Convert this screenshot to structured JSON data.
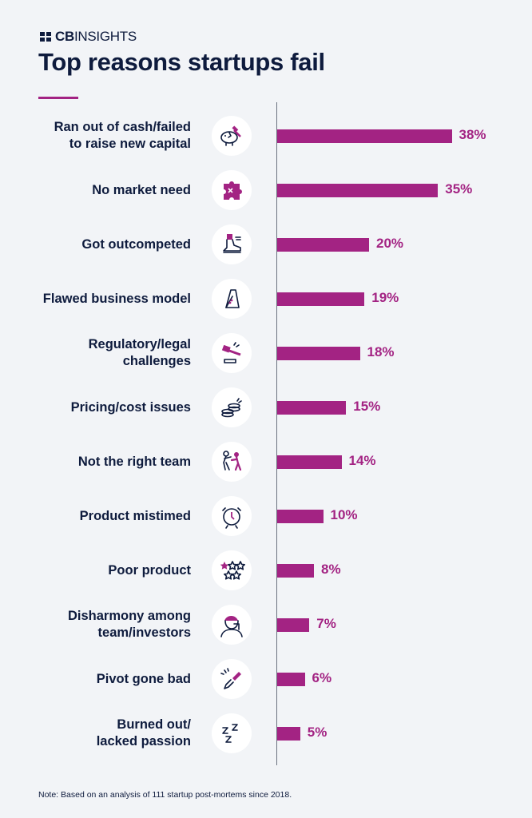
{
  "brand": {
    "bold": "CB",
    "rest": "INSIGHTS"
  },
  "note": "Note: Based on an analysis of 111 startup post-mortems since 2018.",
  "colors": {
    "bar": "#a32383",
    "text": "#0e1b3d",
    "background": "#f2f4f7"
  },
  "chart_data": {
    "type": "bar",
    "orientation": "horizontal",
    "title": "Top reasons startups fail",
    "categories": [
      "Ran out of cash/failed\nto raise new capital",
      "No market need",
      "Got outcompeted",
      "Flawed business model",
      "Regulatory/legal\nchallenges",
      "Pricing/cost issues",
      "Not the right team",
      "Product mistimed",
      "Poor product",
      "Disharmony among\nteam/investors",
      "Pivot gone bad",
      "Burned out/\nlacked passion"
    ],
    "values": [
      38,
      35,
      20,
      19,
      18,
      15,
      14,
      10,
      8,
      7,
      6,
      5
    ],
    "value_labels": [
      "38%",
      "35%",
      "20%",
      "19%",
      "18%",
      "15%",
      "14%",
      "10%",
      "8%",
      "7%",
      "6%",
      "5%"
    ],
    "icons": [
      "piggy-bank-hammer-icon",
      "puzzle-piece-icon",
      "sneaker-icon",
      "card-house-icon",
      "gavel-icon",
      "coin-stack-icon",
      "people-arguing-icon",
      "alarm-clock-icon",
      "star-rating-icon",
      "frustrated-person-icon",
      "broken-pencil-icon",
      "sleep-zzz-icon"
    ],
    "xlim": [
      0,
      40
    ],
    "grid": false
  }
}
